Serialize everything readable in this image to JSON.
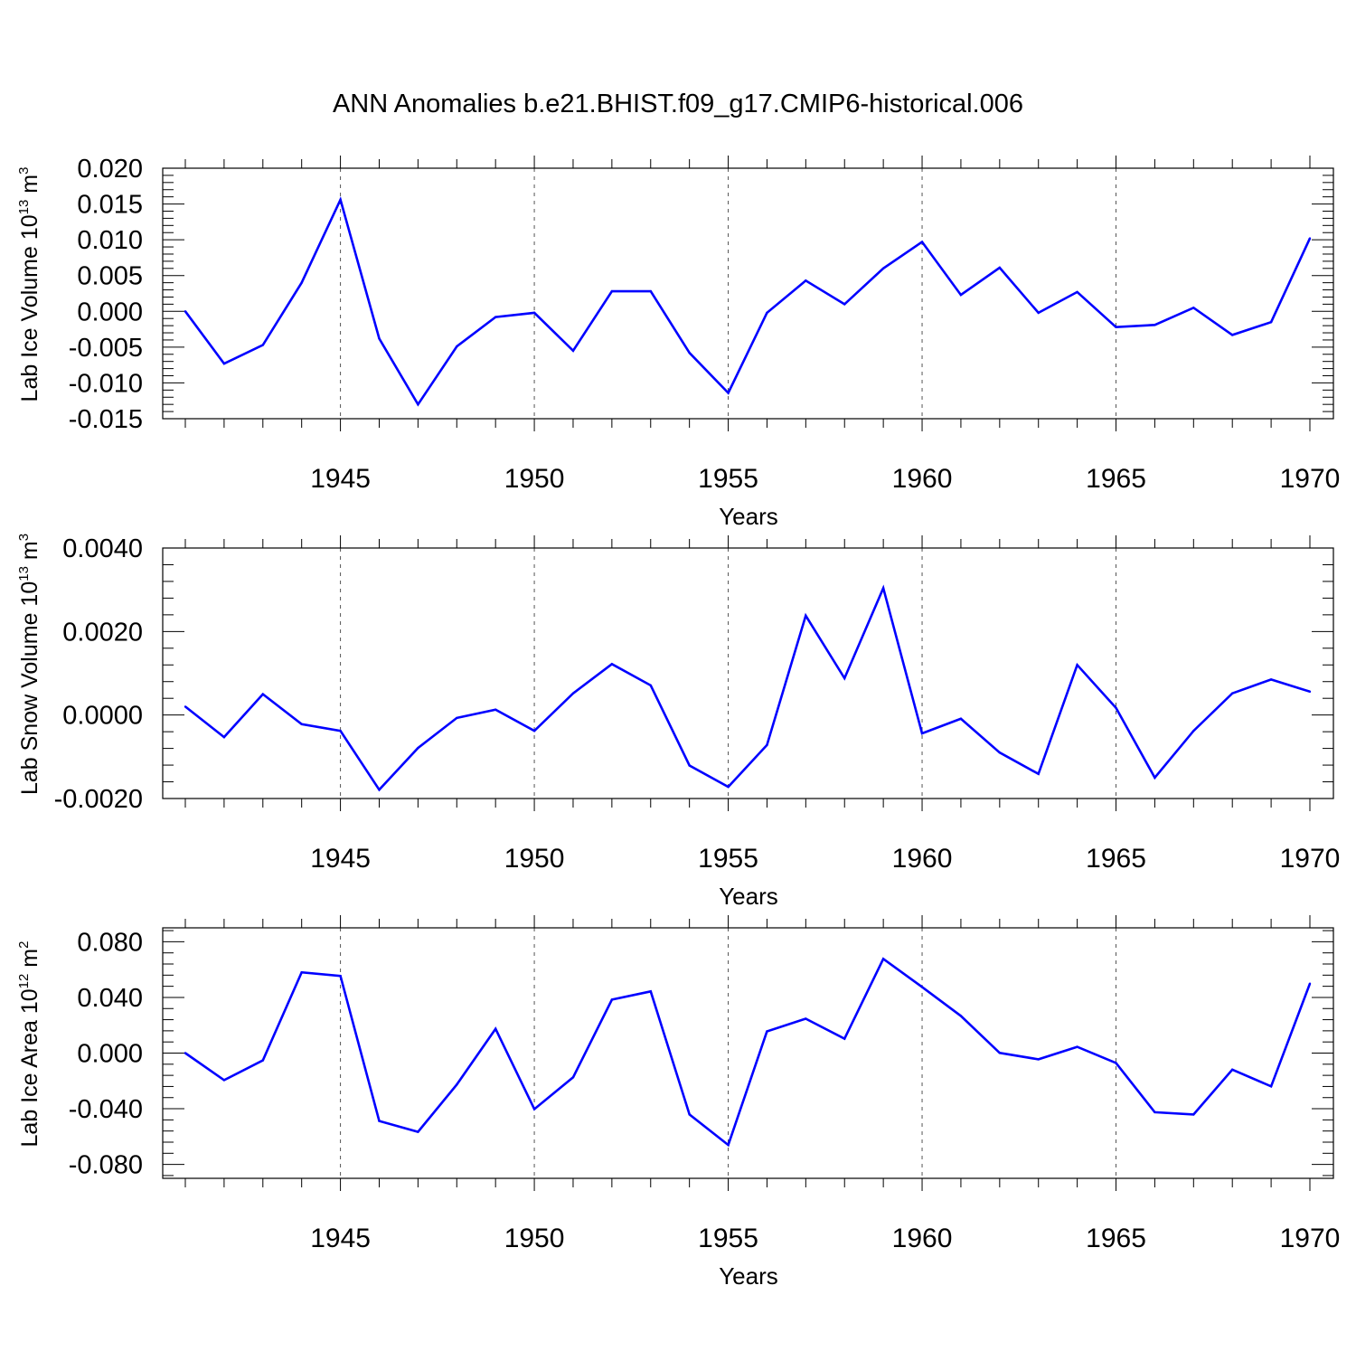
{
  "title": "ANN Anomalies b.e21.BHIST.f09_g17.CMIP6-historical.006",
  "colors": {
    "series": "#0000ff",
    "axis": "#000000",
    "grid": "#555555"
  },
  "chart_data": [
    {
      "type": "line",
      "name": "lab-ice-volume",
      "ylabel_main": "Lab Ice Volume 10",
      "ylabel_exp": "13",
      "ylabel_unit": " m",
      "ylabel_unit_exp": "3",
      "xlabel": "Years",
      "xlim": [
        1941,
        1970
      ],
      "ylim": [
        -0.015,
        0.02
      ],
      "xticks": [
        1945,
        1950,
        1955,
        1960,
        1965,
        1970
      ],
      "yticks": [
        "0.020",
        "0.015",
        "0.010",
        "0.005",
        "0.000",
        "-0.005",
        "-0.010",
        "-0.015"
      ],
      "ytick_values": [
        0.02,
        0.015,
        0.01,
        0.005,
        0.0,
        -0.005,
        -0.01,
        -0.015
      ],
      "grid": "x-dashed",
      "x": [
        1941,
        1942,
        1943,
        1944,
        1945,
        1946,
        1947,
        1948,
        1949,
        1950,
        1951,
        1952,
        1953,
        1954,
        1955,
        1956,
        1957,
        1958,
        1959,
        1960,
        1961,
        1962,
        1963,
        1964,
        1965,
        1966,
        1967,
        1968,
        1969,
        1970
      ],
      "values": [
        0.0,
        -0.0073,
        -0.0047,
        0.004,
        0.0156,
        -0.0038,
        -0.013,
        -0.0049,
        -0.0008,
        -0.0002,
        -0.0055,
        0.0028,
        0.0028,
        -0.0058,
        -0.0114,
        -0.0002,
        0.0043,
        0.001,
        0.006,
        0.0097,
        0.0023,
        0.0061,
        -0.0002,
        0.0027,
        -0.0022,
        -0.0019,
        0.0005,
        -0.0033,
        -0.0015,
        0.0102
      ]
    },
    {
      "type": "line",
      "name": "lab-snow-volume",
      "ylabel_main": "Lab Snow Volume 10",
      "ylabel_exp": "13",
      "ylabel_unit": " m",
      "ylabel_unit_exp": "3",
      "xlabel": "Years",
      "xlim": [
        1941,
        1970
      ],
      "ylim": [
        -0.002,
        0.004
      ],
      "xticks": [
        1945,
        1950,
        1955,
        1960,
        1965,
        1970
      ],
      "yticks": [
        "0.0040",
        "0.0020",
        "0.0000",
        "-0.0020"
      ],
      "ytick_values": [
        0.004,
        0.002,
        0.0,
        -0.002
      ],
      "grid": "x-dashed",
      "x": [
        1941,
        1942,
        1943,
        1944,
        1945,
        1946,
        1947,
        1948,
        1949,
        1950,
        1951,
        1952,
        1953,
        1954,
        1955,
        1956,
        1957,
        1958,
        1959,
        1960,
        1961,
        1962,
        1963,
        1964,
        1965,
        1966,
        1967,
        1968,
        1969,
        1970
      ],
      "values": [
        0.0002,
        -0.00053,
        0.0005,
        -0.00022,
        -0.00038,
        -0.00179,
        -0.00079,
        -7e-05,
        0.00013,
        -0.00038,
        0.00052,
        0.00122,
        0.00071,
        -0.00121,
        -0.00172,
        -0.00072,
        0.00238,
        0.00088,
        0.00304,
        -0.00044,
        -9e-05,
        -0.0009,
        -0.00141,
        0.0012,
        0.00017,
        -0.0015,
        -0.00038,
        0.00052,
        0.00085,
        0.00056
      ]
    },
    {
      "type": "line",
      "name": "lab-ice-area",
      "ylabel_main": "Lab Ice Area 10",
      "ylabel_exp": "12",
      "ylabel_unit": " m",
      "ylabel_unit_exp": "2",
      "xlabel": "Years",
      "xlim": [
        1941,
        1970
      ],
      "ylim": [
        -0.09,
        0.09
      ],
      "xticks": [
        1945,
        1950,
        1955,
        1960,
        1965,
        1970
      ],
      "yticks": [
        "0.080",
        "0.040",
        "0.000",
        "-0.040",
        "-0.080"
      ],
      "ytick_values": [
        0.08,
        0.04,
        0.0,
        -0.04,
        -0.08
      ],
      "grid": "x-dashed",
      "x": [
        1941,
        1942,
        1943,
        1944,
        1945,
        1946,
        1947,
        1948,
        1949,
        1950,
        1951,
        1952,
        1953,
        1954,
        1955,
        1956,
        1957,
        1958,
        1959,
        1960,
        1961,
        1962,
        1963,
        1964,
        1965,
        1966,
        1967,
        1968,
        1969,
        1970
      ],
      "values": [
        0.0,
        -0.0194,
        -0.0052,
        0.058,
        0.0554,
        -0.0488,
        -0.0566,
        -0.0226,
        0.0174,
        -0.0403,
        -0.0174,
        0.0384,
        0.0443,
        -0.0441,
        -0.066,
        0.0156,
        0.0247,
        0.0103,
        0.0677,
        0.0475,
        0.0267,
        0.0001,
        -0.0045,
        0.0045,
        -0.0071,
        -0.0425,
        -0.0441,
        -0.0119,
        -0.0239,
        0.0499
      ]
    }
  ]
}
